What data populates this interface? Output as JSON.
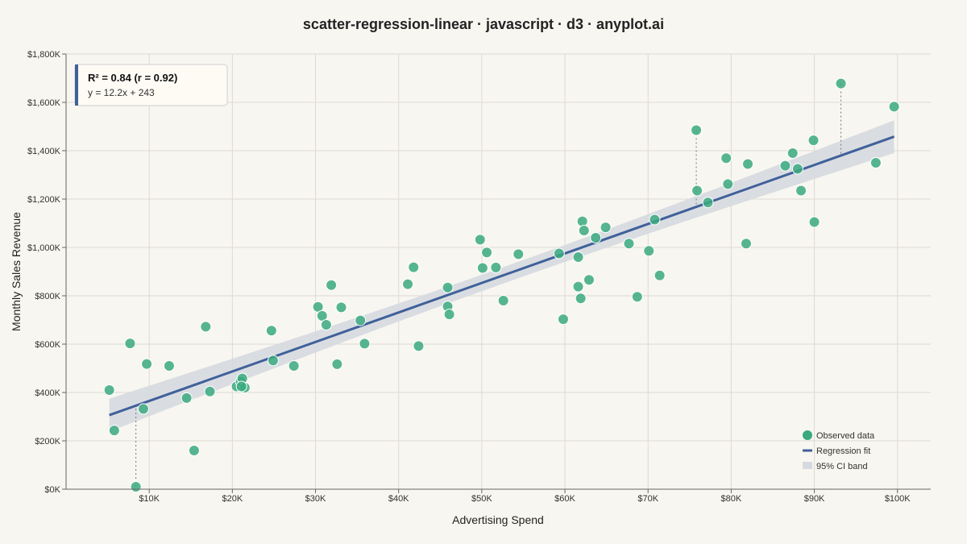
{
  "chart_data": {
    "type": "scatter",
    "title": "scatter-regression-linear · javascript · d3 · anyplot.ai",
    "xlabel": "Advertising Spend",
    "ylabel": "Monthly Sales Revenue",
    "xlim": [
      0,
      104000
    ],
    "ylim": [
      0,
      1800
    ],
    "x_ticks": [
      10000,
      20000,
      30000,
      40000,
      50000,
      60000,
      70000,
      80000,
      90000,
      100000
    ],
    "x_tick_labels": [
      "$10K",
      "$20K",
      "$30K",
      "$40K",
      "$50K",
      "$60K",
      "$70K",
      "$80K",
      "$90K",
      "$100K"
    ],
    "y_ticks": [
      0,
      200,
      400,
      600,
      800,
      1000,
      1200,
      1400,
      1600,
      1800
    ],
    "y_tick_labels": [
      "$0K",
      "$200K",
      "$400K",
      "$600K",
      "$800K",
      "$1,000K",
      "$1,200K",
      "$1,400K",
      "$1,600K",
      "$1,800K"
    ],
    "grid": true,
    "stats": {
      "r2_text": "R² = 0.84 (r = 0.92)",
      "equation_text": "y = 12.2x + 243"
    },
    "regression": {
      "x_range": [
        5200,
        99600
      ],
      "slope": 12.2,
      "intercept": 243,
      "ci_halfwidth_ends": 68,
      "ci_halfwidth_mid": 34
    },
    "residual_lines": [
      {
        "x": 8400,
        "y": 10
      },
      {
        "x": 75800,
        "y": 1485
      },
      {
        "x": 93200,
        "y": 1678
      }
    ],
    "legend": {
      "position": "bottom-right",
      "items": [
        "Observed data",
        "Regression fit",
        "95% CI band"
      ]
    },
    "colors": {
      "points": "#3aa97f",
      "line": "#40609a",
      "band": "#d5dae0",
      "background": "#f8f6f0"
    },
    "series": [
      {
        "name": "Observed data",
        "points": [
          [
            5200,
            410
          ],
          [
            5800,
            243
          ],
          [
            7700,
            603
          ],
          [
            8400,
            10
          ],
          [
            9300,
            332
          ],
          [
            9700,
            518
          ],
          [
            12400,
            510
          ],
          [
            14500,
            377
          ],
          [
            15400,
            160
          ],
          [
            16800,
            672
          ],
          [
            17300,
            404
          ],
          [
            20500,
            425
          ],
          [
            21000,
            445
          ],
          [
            21200,
            458
          ],
          [
            21500,
            420
          ],
          [
            21100,
            425
          ],
          [
            24700,
            656
          ],
          [
            24900,
            532
          ],
          [
            27400,
            510
          ],
          [
            30300,
            754
          ],
          [
            30800,
            717
          ],
          [
            31300,
            680
          ],
          [
            31900,
            844
          ],
          [
            32600,
            517
          ],
          [
            33100,
            752
          ],
          [
            35400,
            698
          ],
          [
            35900,
            602
          ],
          [
            41100,
            848
          ],
          [
            41800,
            918
          ],
          [
            42400,
            592
          ],
          [
            45900,
            834
          ],
          [
            45900,
            756
          ],
          [
            46100,
            723
          ],
          [
            49800,
            1032
          ],
          [
            50100,
            915
          ],
          [
            50600,
            979
          ],
          [
            51700,
            917
          ],
          [
            52600,
            780
          ],
          [
            54400,
            972
          ],
          [
            59300,
            975
          ],
          [
            59800,
            703
          ],
          [
            61600,
            838
          ],
          [
            61600,
            960
          ],
          [
            61900,
            789
          ],
          [
            62100,
            1108
          ],
          [
            62300,
            1070
          ],
          [
            62900,
            866
          ],
          [
            63700,
            1040
          ],
          [
            64900,
            1083
          ],
          [
            67700,
            1016
          ],
          [
            68700,
            796
          ],
          [
            70100,
            986
          ],
          [
            70800,
            1115
          ],
          [
            71400,
            884
          ],
          [
            75800,
            1485
          ],
          [
            75900,
            1235
          ],
          [
            77200,
            1186
          ],
          [
            79400,
            1369
          ],
          [
            79600,
            1262
          ],
          [
            81800,
            1016
          ],
          [
            82000,
            1345
          ],
          [
            86500,
            1338
          ],
          [
            87400,
            1390
          ],
          [
            88000,
            1325
          ],
          [
            88400,
            1235
          ],
          [
            89900,
            1443
          ],
          [
            90000,
            1105
          ],
          [
            93200,
            1678
          ],
          [
            97400,
            1350
          ],
          [
            99600,
            1582
          ]
        ]
      }
    ]
  }
}
